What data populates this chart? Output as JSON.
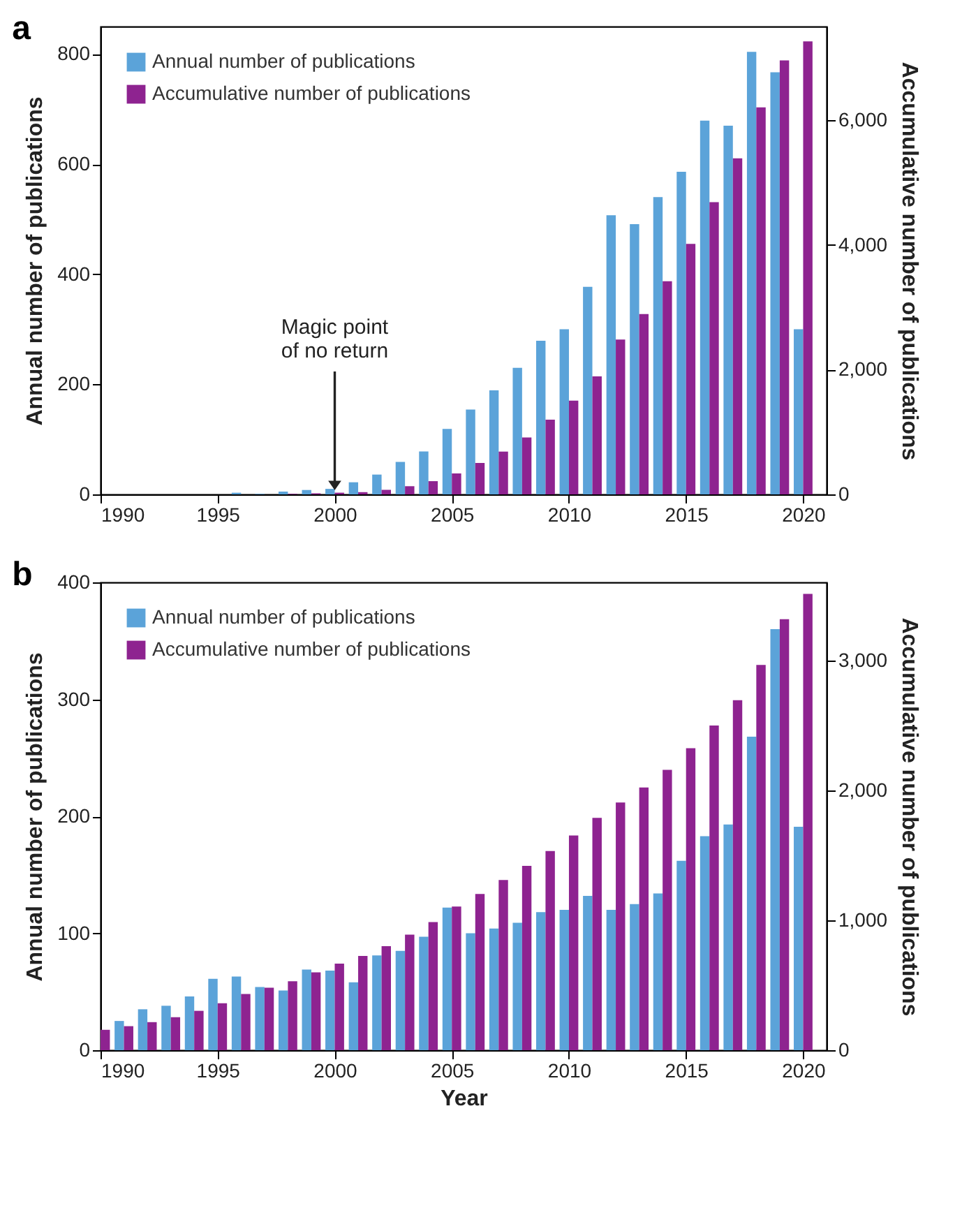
{
  "chart_data": [
    {
      "type": "bar",
      "title": "a",
      "ylabel": "Annual number of publications",
      "y2label": "Accumulative number of publications",
      "x": [
        1990,
        1991,
        1992,
        1993,
        1994,
        1995,
        1996,
        1997,
        1998,
        1999,
        2000,
        2001,
        2002,
        2003,
        2004,
        2005,
        2006,
        2007,
        2008,
        2009,
        2010,
        2011,
        2012,
        2013,
        2014,
        2015,
        2016,
        2017,
        2018,
        2019,
        2020
      ],
      "series": [
        {
          "name": "Annual number of publications",
          "color": "#5ba3d9",
          "values": [
            0,
            0,
            0,
            0,
            0,
            0,
            3,
            1,
            5,
            8,
            10,
            22,
            36,
            59,
            78,
            119,
            154,
            189,
            230,
            279,
            300,
            377,
            507,
            491,
            540,
            586,
            679,
            670,
            804,
            767,
            300
          ]
        },
        {
          "name": "Accumulative number of publications",
          "color": "#8e2390",
          "axis": "y2",
          "values": [
            0,
            0,
            0,
            0,
            0,
            0,
            null,
            null,
            9,
            17,
            27,
            36,
            73,
            131,
            212,
            336,
            504,
            686,
            912,
            1197,
            1504,
            1891,
            2482,
            2891,
            3416,
            4015,
            4686,
            5387,
            6204,
            6956,
            7263
          ]
        }
      ],
      "xlim": [
        1990,
        2021
      ],
      "xticks": [
        1990,
        1995,
        2000,
        2005,
        2010,
        2015,
        2020
      ],
      "ylim": [
        0,
        850
      ],
      "yticks": [
        0,
        200,
        400,
        600,
        800
      ],
      "y2lim": [
        0,
        7500
      ],
      "y2ticks": [
        0,
        {
          "value": 2000,
          "label": "2,000"
        },
        {
          "value": 4000,
          "label": "4,000"
        },
        {
          "value": 6000,
          "label": "6,000"
        }
      ],
      "annotations": [
        "Magic point\nof no return"
      ],
      "legend": "top left",
      "grid": false
    },
    {
      "type": "bar",
      "title": "b",
      "xlabel": "Year",
      "ylabel": "Annual number of publications",
      "y2label": "Accumulative number of publications",
      "x": [
        1990,
        1991,
        1992,
        1993,
        1994,
        1995,
        1996,
        1997,
        1998,
        1999,
        2000,
        2001,
        2002,
        2003,
        2004,
        2005,
        2006,
        2007,
        2008,
        2009,
        2010,
        2011,
        2012,
        2013,
        2014,
        2015,
        2016,
        2017,
        2018,
        2019,
        2020
      ],
      "series": [
        {
          "name": "Annual number of publications",
          "color": "#5ba3d9",
          "values": [
            null,
            25,
            35,
            38,
            46,
            61,
            63,
            54,
            51,
            69,
            68,
            58,
            81,
            85,
            97,
            122,
            100,
            104,
            109,
            118,
            120,
            132,
            120,
            125,
            134,
            162,
            183,
            193,
            268,
            360,
            191
          ]
        },
        {
          "name": "Accumulative number of publications",
          "color": "#8e2390",
          "axis": "y2",
          "values": [
            157,
            185,
            216,
            254,
            303,
            362,
            432,
            481,
            530,
            599,
            666,
            725,
            801,
            889,
            986,
            1105,
            1202,
            1310,
            1418,
            1533,
            1652,
            1788,
            1906,
            2021,
            2157,
            2324,
            2498,
            2693,
            2965,
            3317,
            3512
          ]
        }
      ],
      "xlim": [
        1990,
        2021
      ],
      "xticks": [
        1990,
        1995,
        2000,
        2005,
        2010,
        2015,
        2020
      ],
      "ylim": [
        0,
        400
      ],
      "yticks": [
        0,
        100,
        200,
        300,
        400
      ],
      "y2lim": [
        0,
        3600
      ],
      "y2ticks": [
        0,
        {
          "value": 1000,
          "label": "1,000"
        },
        {
          "value": 2000,
          "label": "2,000"
        },
        {
          "value": 3000,
          "label": "3,000"
        }
      ],
      "legend": "top left",
      "grid": false
    }
  ]
}
